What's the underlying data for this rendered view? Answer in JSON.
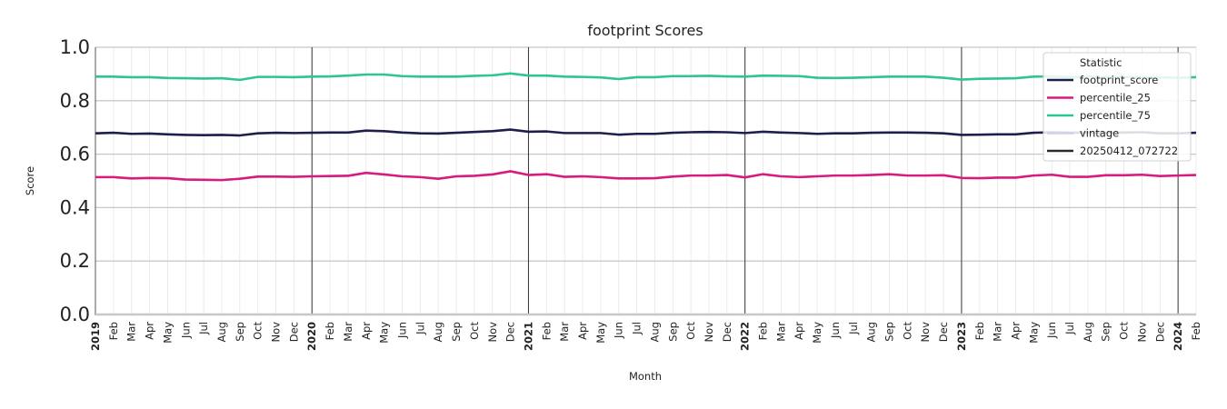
{
  "chart_data": {
    "type": "line",
    "title": "footprint Scores",
    "xlabel": "Month",
    "ylabel": "Score",
    "ylim": [
      0,
      1
    ],
    "yticks": [
      "0.0",
      "0.2",
      "0.4",
      "0.6",
      "0.8",
      "1.0"
    ],
    "x_start": "2019-01",
    "x_end": "2024-02",
    "x": [
      "2019",
      "Feb",
      "Mar",
      "Apr",
      "May",
      "Jun",
      "Jul",
      "Aug",
      "Sep",
      "Oct",
      "Nov",
      "Dec",
      "2020",
      "Feb",
      "Mar",
      "Apr",
      "May",
      "Jun",
      "Jul",
      "Aug",
      "Sep",
      "Oct",
      "Nov",
      "Dec",
      "2021",
      "Feb",
      "Mar",
      "Apr",
      "May",
      "Jun",
      "Jul",
      "Aug",
      "Sep",
      "Oct",
      "Nov",
      "Dec",
      "2022",
      "Feb",
      "Mar",
      "Apr",
      "May",
      "Jun",
      "Jul",
      "Aug",
      "Sep",
      "Oct",
      "Nov",
      "Dec",
      "2023",
      "Feb",
      "Mar",
      "Apr",
      "May",
      "Jun",
      "Jul",
      "Aug",
      "Sep",
      "Oct",
      "Nov",
      "Dec",
      "2024",
      "Feb"
    ],
    "year_labels": [
      "2019",
      "2020",
      "2021",
      "2022",
      "2023",
      "2024"
    ],
    "vintage_lines": [
      "2020-01",
      "2021-01",
      "2022-01",
      "2023-01",
      "2024-01"
    ],
    "grid": true,
    "legend": {
      "title": "Statistic",
      "position": "top-right",
      "entries": [
        "footprint_score",
        "percentile_25",
        "percentile_75",
        "vintage",
        "20250412_072722"
      ]
    },
    "series": [
      {
        "name": "footprint_score",
        "color": "#1f1f4d",
        "values": [
          0.678,
          0.68,
          0.676,
          0.677,
          0.674,
          0.672,
          0.671,
          0.672,
          0.67,
          0.678,
          0.68,
          0.679,
          0.68,
          0.681,
          0.681,
          0.688,
          0.686,
          0.681,
          0.678,
          0.677,
          0.68,
          0.683,
          0.686,
          0.692,
          0.684,
          0.685,
          0.679,
          0.679,
          0.679,
          0.673,
          0.676,
          0.676,
          0.68,
          0.682,
          0.683,
          0.682,
          0.679,
          0.684,
          0.681,
          0.679,
          0.676,
          0.678,
          0.678,
          0.68,
          0.681,
          0.681,
          0.68,
          0.678,
          0.672,
          0.673,
          0.674,
          0.674,
          0.68,
          0.682,
          0.68,
          0.681,
          0.68,
          0.681,
          0.682,
          0.678,
          0.678,
          0.68
        ]
      },
      {
        "name": "percentile_25",
        "color": "#d81b7f",
        "values": [
          0.514,
          0.514,
          0.509,
          0.511,
          0.51,
          0.505,
          0.504,
          0.503,
          0.508,
          0.516,
          0.516,
          0.515,
          0.517,
          0.518,
          0.519,
          0.53,
          0.524,
          0.517,
          0.514,
          0.508,
          0.517,
          0.519,
          0.524,
          0.536,
          0.522,
          0.525,
          0.515,
          0.517,
          0.514,
          0.509,
          0.509,
          0.51,
          0.516,
          0.52,
          0.52,
          0.522,
          0.513,
          0.525,
          0.517,
          0.514,
          0.517,
          0.52,
          0.52,
          0.522,
          0.525,
          0.52,
          0.52,
          0.521,
          0.511,
          0.51,
          0.512,
          0.512,
          0.52,
          0.523,
          0.515,
          0.515,
          0.521,
          0.521,
          0.523,
          0.518,
          0.52,
          0.522
        ]
      },
      {
        "name": "percentile_75",
        "color": "#2ec493",
        "values": [
          0.89,
          0.89,
          0.888,
          0.888,
          0.885,
          0.884,
          0.883,
          0.884,
          0.878,
          0.889,
          0.889,
          0.888,
          0.89,
          0.891,
          0.894,
          0.898,
          0.898,
          0.892,
          0.89,
          0.89,
          0.89,
          0.893,
          0.895,
          0.902,
          0.894,
          0.894,
          0.89,
          0.889,
          0.887,
          0.881,
          0.888,
          0.888,
          0.892,
          0.892,
          0.893,
          0.891,
          0.89,
          0.894,
          0.893,
          0.892,
          0.886,
          0.885,
          0.886,
          0.888,
          0.89,
          0.89,
          0.89,
          0.886,
          0.879,
          0.882,
          0.883,
          0.884,
          0.89,
          0.891,
          0.888,
          0.889,
          0.889,
          0.889,
          0.888,
          0.887,
          0.886,
          0.888
        ]
      }
    ]
  },
  "colors": {
    "vintage": "#d0d0e6",
    "vintage_line": "#333333",
    "grid_major": "#c8c8c8",
    "grid_minor": "#e6e6e6"
  }
}
